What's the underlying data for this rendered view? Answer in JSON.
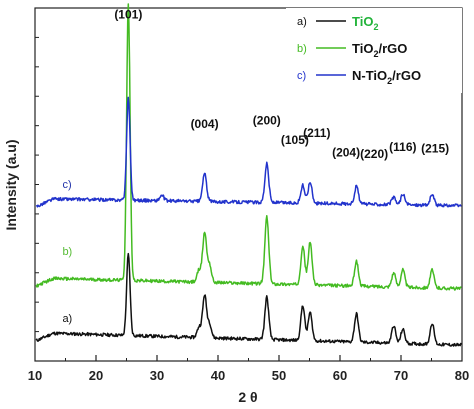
{
  "chart_data": {
    "type": "line",
    "xlabel": "2 θ",
    "ylabel": "Intensity (a.u)",
    "xlim": [
      10,
      80
    ],
    "x_ticks": [
      "10",
      "20",
      "30",
      "40",
      "50",
      "60",
      "70",
      "80"
    ],
    "grid": false,
    "legend_position": "top-right",
    "legend": [
      {
        "tag": "a)",
        "parts": [
          "TiO",
          "2",
          ""
        ],
        "text_color": "#22b33a",
        "line_color": "#111111"
      },
      {
        "tag": "b)",
        "parts": [
          "TiO",
          "2",
          "/rGO"
        ],
        "text_color": "#111111",
        "line_color": "#44bb22"
      },
      {
        "tag": "c)",
        "parts": [
          "N-TiO",
          "2",
          "/rGO"
        ],
        "text_color": "#111111",
        "line_color": "#2233cc"
      }
    ],
    "peak_labels": [
      {
        "text": "(101)",
        "x": 25.3,
        "y": 0.97
      },
      {
        "text": "(004)",
        "x": 37.8,
        "y": 0.66
      },
      {
        "text": "(200)",
        "x": 48.0,
        "y": 0.67
      },
      {
        "text": "(105)",
        "x": 52.6,
        "y": 0.615
      },
      {
        "text": "(211)",
        "x": 56.2,
        "y": 0.635
      },
      {
        "text": "(204)",
        "x": 61.0,
        "y": 0.58
      },
      {
        "text": "(220)",
        "x": 65.6,
        "y": 0.575
      },
      {
        "text": "(116)",
        "x": 70.3,
        "y": 0.595
      },
      {
        "text": "(215)",
        "x": 75.6,
        "y": 0.59
      }
    ],
    "series": [
      {
        "tag": "a)",
        "color": "#111111",
        "tag_color": "#111111",
        "tag_x": 14.5,
        "tag_y": 0.11,
        "baseline": 0.08,
        "baseline_end": 0.045,
        "peaks": [
          [
            25.3,
            0.23
          ],
          [
            36.9,
            0.03
          ],
          [
            37.8,
            0.12
          ],
          [
            38.6,
            0.04
          ],
          [
            48.0,
            0.12
          ],
          [
            53.9,
            0.1
          ],
          [
            55.1,
            0.08
          ],
          [
            62.7,
            0.08
          ],
          [
            68.8,
            0.05
          ],
          [
            70.3,
            0.04
          ],
          [
            75.1,
            0.06
          ]
        ]
      },
      {
        "tag": "b)",
        "color": "#44bb22",
        "tag_color": "#55bb33",
        "tag_x": 14.5,
        "tag_y": 0.3,
        "baseline": 0.235,
        "baseline_end": 0.205,
        "peaks": [
          [
            25.3,
            0.78
          ],
          [
            36.9,
            0.035
          ],
          [
            37.8,
            0.14
          ],
          [
            38.6,
            0.05
          ],
          [
            48.0,
            0.19
          ],
          [
            53.9,
            0.11
          ],
          [
            55.1,
            0.12
          ],
          [
            62.7,
            0.07
          ],
          [
            68.8,
            0.04
          ],
          [
            70.3,
            0.05
          ],
          [
            75.1,
            0.05
          ]
        ]
      },
      {
        "tag": "c)",
        "color": "#2233cc",
        "tag_color": "#2233aa",
        "tag_x": 14.5,
        "tag_y": 0.49,
        "baseline": 0.46,
        "baseline_end": 0.44,
        "peaks": [
          [
            25.3,
            0.29
          ],
          [
            30.8,
            0.015
          ],
          [
            37.8,
            0.08
          ],
          [
            48.0,
            0.11
          ],
          [
            53.9,
            0.05
          ],
          [
            55.1,
            0.06
          ],
          [
            62.7,
            0.05
          ],
          [
            68.8,
            0.02
          ],
          [
            70.3,
            0.03
          ],
          [
            75.1,
            0.03
          ]
        ]
      }
    ]
  }
}
